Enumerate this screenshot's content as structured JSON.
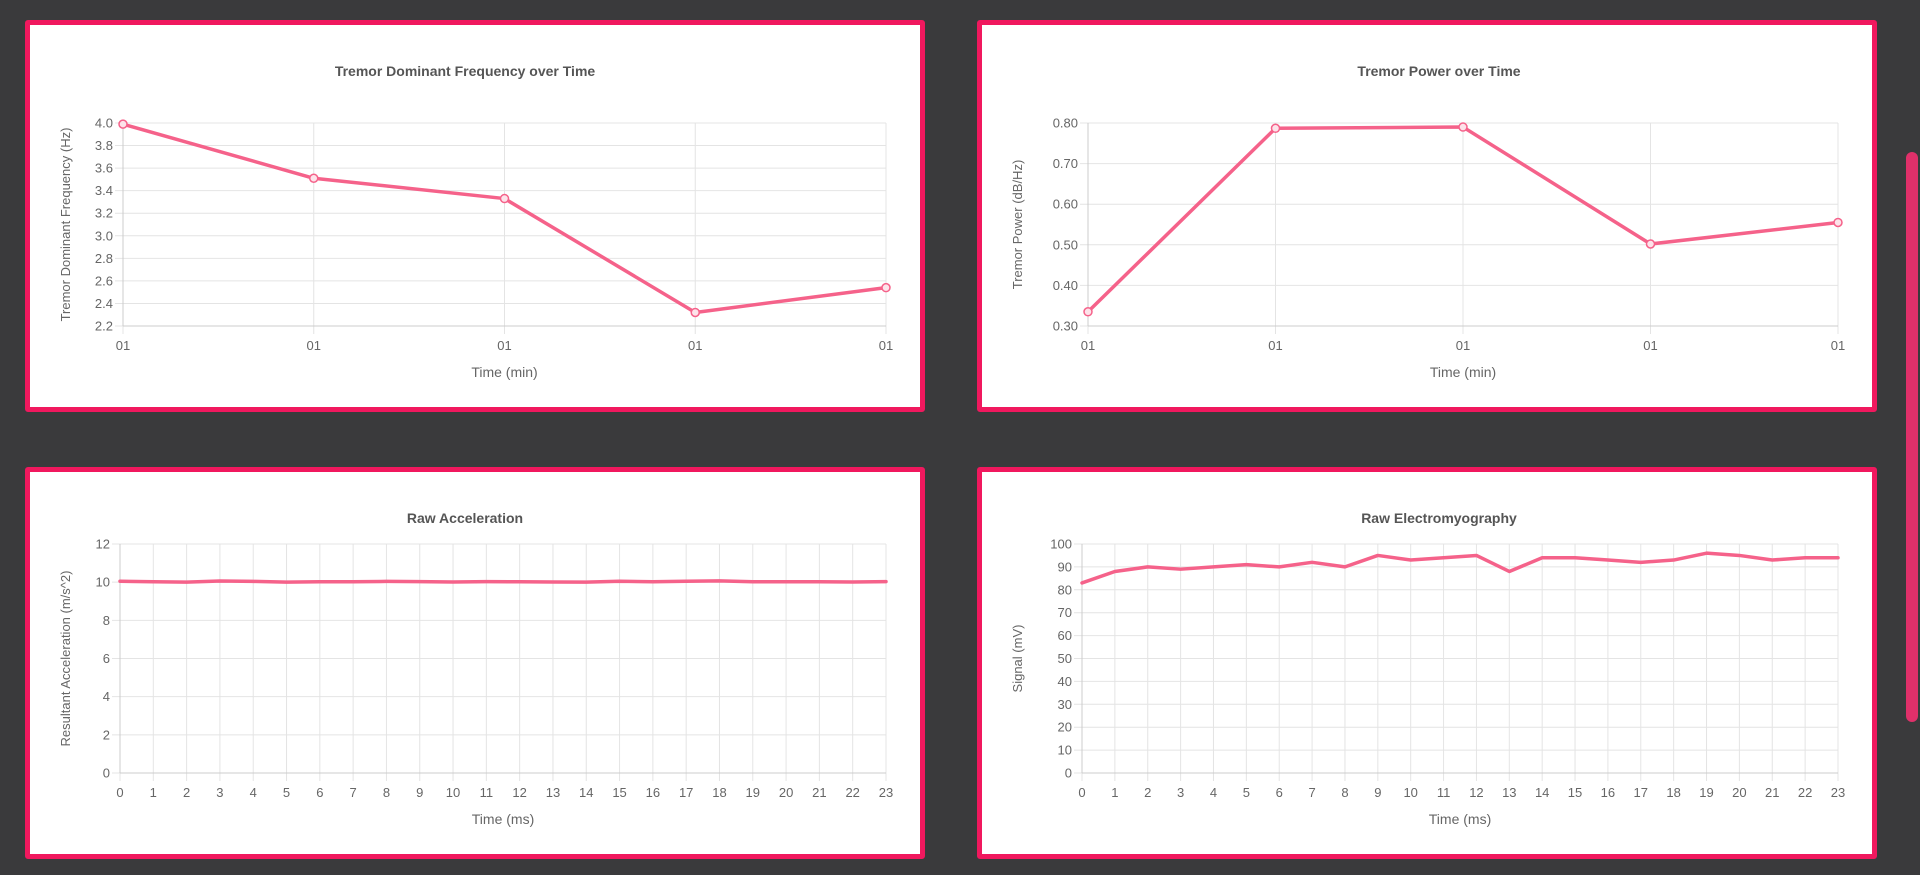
{
  "colors": {
    "card_border": "#f0185e",
    "line": "#f5628a",
    "grid": "#e4e4e4",
    "axis_text": "#666666",
    "title_text": "#555555",
    "page_background": "#3a3a3c"
  },
  "chart_data": [
    {
      "id": "freq",
      "type": "line",
      "title": "Tremor Dominant Frequency over Time",
      "xlabel": "Time (min)",
      "ylabel": "Tremor Dominant Frequency (Hz)",
      "categories": [
        "01",
        "01",
        "01",
        "01",
        "01"
      ],
      "series": [
        {
          "values": [
            3.99,
            3.51,
            3.33,
            2.32,
            2.54
          ]
        }
      ],
      "ylim": [
        2.2,
        4.0
      ],
      "yticks": [
        "2.2",
        "2.4",
        "2.6",
        "2.8",
        "3.0",
        "3.2",
        "3.4",
        "3.6",
        "3.8",
        "4.0"
      ],
      "points": true,
      "grid": true
    },
    {
      "id": "power",
      "type": "line",
      "title": "Tremor Power over Time",
      "xlabel": "Time (min)",
      "ylabel": "Tremor Power (dB/Hz)",
      "categories": [
        "01",
        "01",
        "01",
        "01",
        "01"
      ],
      "series": [
        {
          "values": [
            0.335,
            0.787,
            0.79,
            0.502,
            0.555
          ]
        }
      ],
      "ylim": [
        0.3,
        0.8
      ],
      "yticks": [
        "0.30",
        "0.40",
        "0.50",
        "0.60",
        "0.70",
        "0.80"
      ],
      "points": true,
      "grid": true
    },
    {
      "id": "acc",
      "type": "line",
      "title": "Raw Acceleration",
      "xlabel": "Time (ms)",
      "ylabel": "Resultant Acceleration (m/s^2)",
      "categories": [
        "0",
        "1",
        "2",
        "3",
        "4",
        "5",
        "6",
        "7",
        "8",
        "9",
        "10",
        "11",
        "12",
        "13",
        "14",
        "15",
        "16",
        "17",
        "18",
        "19",
        "20",
        "21",
        "22",
        "23"
      ],
      "series": [
        {
          "values": [
            10.05,
            10.02,
            10.0,
            10.06,
            10.04,
            10.0,
            10.02,
            10.02,
            10.04,
            10.03,
            10.01,
            10.03,
            10.02,
            10.01,
            10.0,
            10.05,
            10.02,
            10.05,
            10.07,
            10.02,
            10.02,
            10.02,
            10.01,
            10.03
          ]
        }
      ],
      "ylim": [
        0,
        12
      ],
      "yticks": [
        "0",
        "2",
        "4",
        "6",
        "8",
        "10",
        "12"
      ],
      "points": false,
      "grid": true
    },
    {
      "id": "emg",
      "type": "line",
      "title": "Raw Electromyography",
      "xlabel": "Time (ms)",
      "ylabel": "Signal (mV)",
      "categories": [
        "0",
        "1",
        "2",
        "3",
        "4",
        "5",
        "6",
        "7",
        "8",
        "9",
        "10",
        "11",
        "12",
        "13",
        "14",
        "15",
        "16",
        "17",
        "18",
        "19",
        "20",
        "21",
        "22",
        "23"
      ],
      "series": [
        {
          "values": [
            83,
            88,
            90,
            89,
            90,
            91,
            90,
            92,
            90,
            95,
            93,
            94,
            95,
            88,
            94,
            94,
            93,
            92,
            93,
            96,
            95,
            93,
            94,
            94
          ]
        }
      ],
      "ylim": [
        0,
        100
      ],
      "yticks": [
        "0",
        "10",
        "20",
        "30",
        "40",
        "50",
        "60",
        "70",
        "80",
        "90",
        "100"
      ],
      "points": false,
      "grid": true
    }
  ]
}
